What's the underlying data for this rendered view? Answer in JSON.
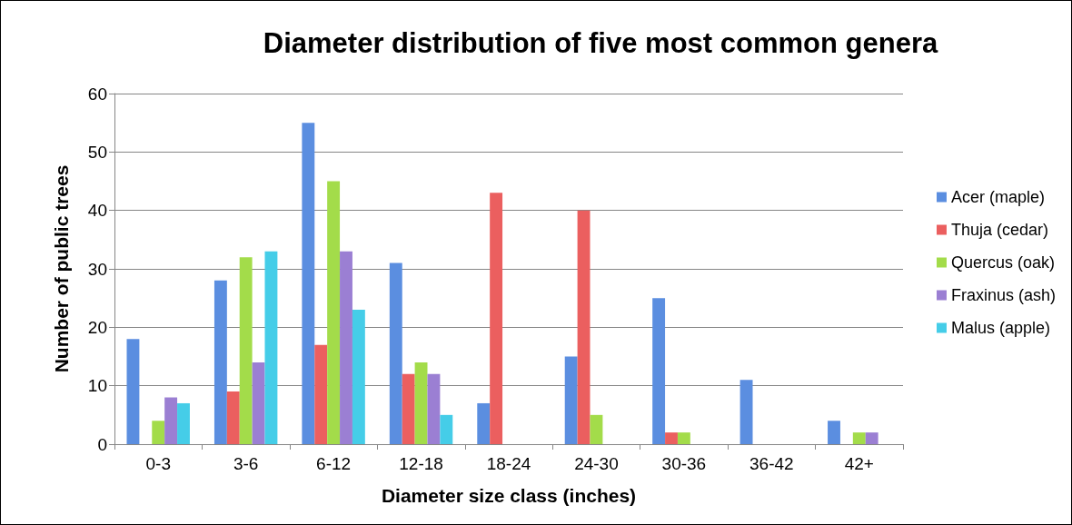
{
  "chart_data": {
    "type": "bar",
    "title": "Diameter distribution of five most common genera",
    "xlabel": "Diameter size class (inches)",
    "ylabel": "Number of public trees",
    "categories": [
      "0-3",
      "3-6",
      "6-12",
      "12-18",
      "18-24",
      "24-30",
      "30-36",
      "36-42",
      "42+"
    ],
    "series": [
      {
        "name": "Acer (maple)",
        "color": "#5b8ee0",
        "values": [
          18,
          28,
          55,
          31,
          7,
          15,
          25,
          11,
          4
        ]
      },
      {
        "name": "Thuja (cedar)",
        "color": "#eb5f5f",
        "values": [
          0,
          9,
          17,
          12,
          43,
          40,
          2,
          0,
          0
        ]
      },
      {
        "name": "Quercus (oak)",
        "color": "#a3dc4a",
        "values": [
          4,
          32,
          45,
          14,
          0,
          5,
          2,
          0,
          2
        ]
      },
      {
        "name": "Fraxinus (ash)",
        "color": "#9b7fd3",
        "values": [
          8,
          14,
          33,
          12,
          0,
          0,
          0,
          0,
          2
        ]
      },
      {
        "name": "Malus (apple)",
        "color": "#45cde8",
        "values": [
          7,
          33,
          23,
          5,
          0,
          0,
          0,
          0,
          0
        ]
      }
    ],
    "ylim": [
      0,
      60
    ],
    "yticks": [
      0,
      10,
      20,
      30,
      40,
      50,
      60
    ],
    "grid": "y",
    "legend": "right"
  }
}
